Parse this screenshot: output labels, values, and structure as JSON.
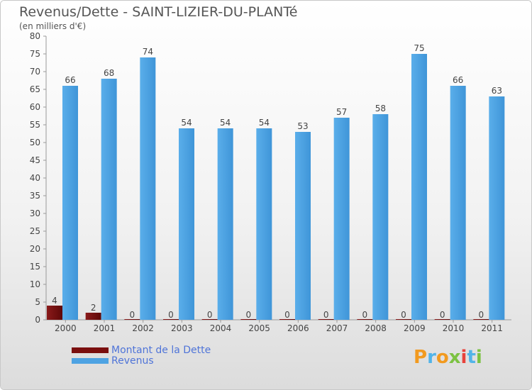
{
  "header": {
    "title": "Revenus/Dette - SAINT-LIZIER-DU-PLANTé",
    "subtitle": "(en milliers d'€)"
  },
  "logo": {
    "text": "Proxiti"
  },
  "colors": {
    "debt": "#7a0f0f",
    "revenue": "#4ea3e3",
    "logo": [
      "#f29a1f",
      "#52b4e8",
      "#f29a1f",
      "#7cc242",
      "#e8423c",
      "#52b4e8",
      "#7cc242"
    ]
  },
  "chart_data": {
    "type": "bar",
    "title": "Revenus/Dette - SAINT-LIZIER-DU-PLANTé",
    "subtitle": "(en milliers d'€)",
    "categories": [
      "2000",
      "2001",
      "2002",
      "2003",
      "2004",
      "2005",
      "2006",
      "2007",
      "2008",
      "2009",
      "2010",
      "2011"
    ],
    "series": [
      {
        "name": "Montant de la Dette",
        "values": [
          4,
          2,
          0,
          0,
          0,
          0,
          0,
          0,
          0,
          0,
          0,
          0
        ]
      },
      {
        "name": "Revenus",
        "values": [
          66,
          68,
          74,
          54,
          54,
          54,
          53,
          57,
          58,
          75,
          66,
          63
        ]
      }
    ],
    "ylim": [
      0,
      80
    ],
    "yticks": [
      0,
      5,
      10,
      15,
      20,
      25,
      30,
      35,
      40,
      45,
      50,
      55,
      60,
      65,
      70,
      75,
      80
    ],
    "grid": false,
    "legend_position": "bottom-left"
  }
}
